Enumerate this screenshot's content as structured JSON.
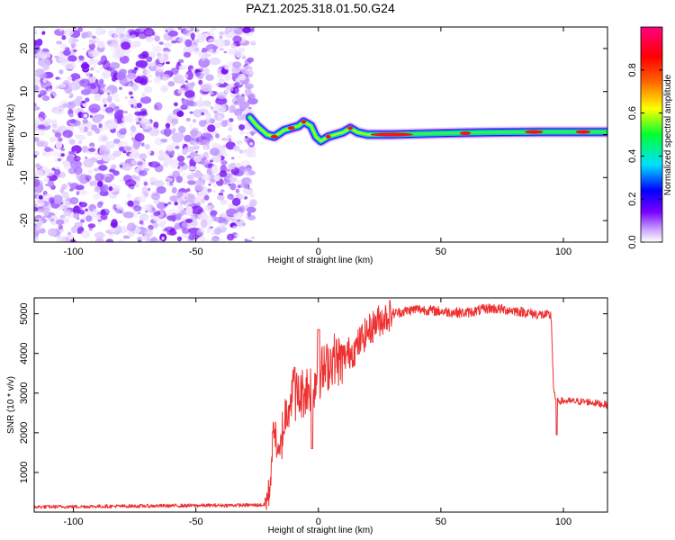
{
  "chart_data": [
    {
      "type": "heatmap",
      "title": "PAZ1.2025.318.01.50.G24",
      "xlabel": "Height of straight line (km)",
      "ylabel": "Frequency (Hz)",
      "xlim": [
        -116,
        118
      ],
      "ylim": [
        -25,
        25
      ],
      "xticks": [
        -100,
        -50,
        0,
        50,
        100
      ],
      "yticks": [
        -20,
        -10,
        0,
        10,
        20
      ],
      "colorbar": {
        "label": "Normalized spectral amplitude",
        "range": [
          0,
          1
        ],
        "ticks": [
          0.0,
          0.2,
          0.4,
          0.6,
          0.8
        ],
        "tick_labels": [
          "0.0",
          "0.2",
          "0.4",
          "0.6",
          "0.8"
        ]
      },
      "noise_region_x": [
        -116,
        -28
      ],
      "signal_ridge": [
        {
          "x": -28,
          "y": 4.0
        },
        {
          "x": -25,
          "y": 2.0
        },
        {
          "x": -21,
          "y": 0.0
        },
        {
          "x": -18,
          "y": -0.5
        },
        {
          "x": -14,
          "y": 1.0
        },
        {
          "x": -11,
          "y": 1.5
        },
        {
          "x": -8,
          "y": 2.0
        },
        {
          "x": -6,
          "y": 3.0
        },
        {
          "x": -3,
          "y": 2.0
        },
        {
          "x": -1,
          "y": -0.5
        },
        {
          "x": 1,
          "y": -1.5
        },
        {
          "x": 4,
          "y": -0.5
        },
        {
          "x": 7,
          "y": 0.0
        },
        {
          "x": 10,
          "y": 0.5
        },
        {
          "x": 13,
          "y": 1.5
        },
        {
          "x": 16,
          "y": 0.5
        },
        {
          "x": 20,
          "y": 0.0
        },
        {
          "x": 30,
          "y": 0.0
        },
        {
          "x": 50,
          "y": 0.3
        },
        {
          "x": 70,
          "y": 0.5
        },
        {
          "x": 90,
          "y": 0.6
        },
        {
          "x": 118,
          "y": 0.6
        }
      ]
    },
    {
      "type": "line",
      "xlabel": "Height of straight line (km)",
      "ylabel": "SNR (10 * v/v)",
      "xlim": [
        -116,
        118
      ],
      "ylim": [
        0,
        5400
      ],
      "xticks": [
        -100,
        -50,
        0,
        50,
        100
      ],
      "yticks": [
        1000,
        2000,
        3000,
        4000,
        5000
      ],
      "series": [
        {
          "name": "SNR",
          "color": "#ee3030",
          "envelope_x": [
            -116,
            -22,
            -20,
            -18,
            -17,
            -16,
            -15,
            -13,
            -11,
            -8,
            -5,
            -2,
            0,
            3,
            6,
            9,
            12,
            15,
            18,
            21,
            24,
            27,
            30,
            35,
            40,
            50,
            60,
            70,
            80,
            90,
            95,
            96,
            97,
            98,
            100,
            110,
            118
          ],
          "envelope_y": [
            130,
            180,
            500,
            2300,
            1600,
            1300,
            1900,
            2600,
            3000,
            2900,
            3100,
            3200,
            3500,
            3600,
            3900,
            3800,
            4000,
            4100,
            4400,
            4600,
            4800,
            4900,
            5000,
            5060,
            5120,
            5060,
            5020,
            5140,
            5080,
            4980,
            4950,
            3100,
            2750,
            2800,
            2800,
            2780,
            2700
          ]
        }
      ]
    }
  ]
}
